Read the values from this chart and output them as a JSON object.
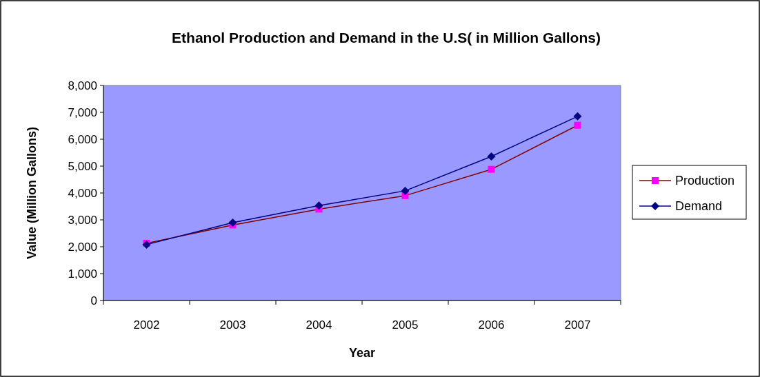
{
  "chart_data": {
    "type": "line",
    "title": "Ethanol Production and Demand in the U.S( in Million Gallons)",
    "xlabel": "Year",
    "ylabel": "Value (Million Gallons)",
    "categories": [
      "2002",
      "2003",
      "2004",
      "2005",
      "2006",
      "2007"
    ],
    "series": [
      {
        "name": "Production",
        "color": "#800000",
        "colors": [
          "#ff00ff",
          "#ff00ff",
          "#ff00ff",
          "#ff00ff",
          "#ff00ff",
          "#ff00ff"
        ],
        "marker": "square",
        "values": [
          2130,
          2810,
          3400,
          3900,
          4880,
          6520
        ]
      },
      {
        "name": "Demand",
        "color": "#000080",
        "marker": "diamond",
        "values": [
          2080,
          2900,
          3530,
          4080,
          5360,
          6850
        ]
      }
    ],
    "ylim": [
      0,
      8000
    ],
    "yticks": [
      {
        "value": 0,
        "label": "0"
      },
      {
        "value": 1000,
        "label": "1,000"
      },
      {
        "value": 2000,
        "label": "2,000"
      },
      {
        "value": 3000,
        "label": "3,000"
      },
      {
        "value": 4000,
        "label": "4,000"
      },
      {
        "value": 5000,
        "label": "5,000"
      },
      {
        "value": 6000,
        "label": "6,000"
      },
      {
        "value": 7000,
        "label": "7,000"
      },
      {
        "value": 8000,
        "label": "8,000"
      }
    ],
    "grid": false,
    "legend": "right",
    "line_style": "solid"
  }
}
